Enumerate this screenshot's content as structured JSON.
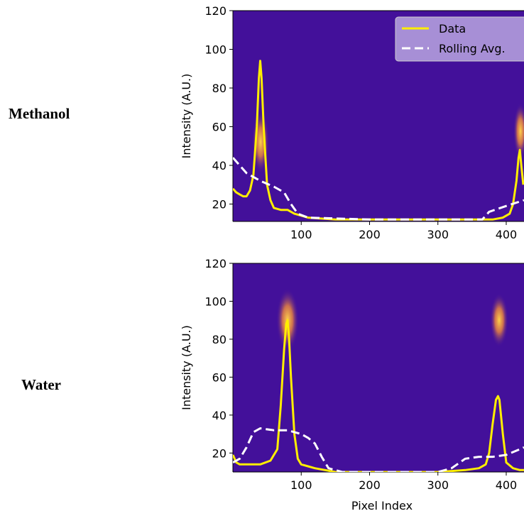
{
  "chart_data": [
    {
      "type": "line",
      "title": "Methanol",
      "ylabel": "Intensity (A.U.)",
      "xlim": [
        0,
        426
      ],
      "xticks": [
        100,
        200,
        300,
        400
      ],
      "ylim": [
        11,
        120
      ],
      "yticks": [
        20,
        40,
        60,
        80,
        100,
        120
      ],
      "legend": "upper right",
      "series": [
        {
          "name": "Data",
          "color": "#ffee00",
          "style": "solid",
          "x": [
            0,
            5,
            10,
            15,
            20,
            25,
            30,
            35,
            38,
            40,
            42,
            45,
            50,
            55,
            60,
            70,
            80,
            90,
            100,
            110,
            150,
            200,
            250,
            300,
            350,
            380,
            395,
            405,
            410,
            415,
            418,
            420,
            422,
            425
          ],
          "values": [
            28,
            26,
            25,
            24,
            24,
            27,
            35,
            60,
            85,
            94,
            85,
            60,
            30,
            22,
            18,
            17,
            17,
            15,
            14,
            13,
            12,
            12,
            12,
            12,
            12,
            12,
            13,
            15,
            20,
            32,
            44,
            48,
            40,
            30
          ]
        },
        {
          "name": "Rolling Avg.",
          "color": "#ffffff",
          "style": "dashed",
          "x": [
            0,
            20,
            40,
            60,
            75,
            85,
            95,
            110,
            200,
            300,
            365,
            375,
            400,
            426
          ],
          "values": [
            44,
            36,
            32,
            29,
            26,
            20,
            15,
            13,
            12,
            12,
            12,
            16,
            19,
            22
          ]
        }
      ]
    },
    {
      "type": "line",
      "title": "Water",
      "ylabel": "Intensity (A.U.)",
      "xlabel": "Pixel Index",
      "xlim": [
        0,
        426
      ],
      "xticks": [
        100,
        200,
        300,
        400
      ],
      "ylim": [
        10,
        120
      ],
      "yticks": [
        20,
        40,
        60,
        80,
        100,
        120
      ],
      "series": [
        {
          "color": "#ffee00",
          "style": "solid",
          "x": [
            0,
            5,
            10,
            20,
            40,
            55,
            65,
            70,
            75,
            78,
            80,
            82,
            85,
            90,
            95,
            100,
            110,
            120,
            150,
            200,
            300,
            340,
            360,
            370,
            375,
            380,
            385,
            388,
            390,
            395,
            400,
            410,
            420,
            426
          ],
          "values": [
            19,
            15,
            14,
            14,
            14,
            16,
            22,
            45,
            75,
            88,
            90,
            82,
            60,
            30,
            17,
            14,
            13,
            12,
            10,
            10,
            10,
            11,
            12,
            14,
            20,
            35,
            48,
            50,
            48,
            30,
            15,
            12,
            11,
            11
          ]
        },
        {
          "color": "#ffffff",
          "style": "dashed",
          "x": [
            0,
            10,
            20,
            30,
            40,
            60,
            80,
            100,
            110,
            120,
            130,
            140,
            160,
            200,
            300,
            320,
            340,
            360,
            380,
            400,
            420,
            426
          ],
          "values": [
            15,
            17,
            23,
            31,
            33,
            32,
            32,
            30,
            28,
            25,
            18,
            12,
            10,
            10,
            10,
            12,
            17,
            18,
            18,
            19,
            22,
            23
          ]
        }
      ]
    }
  ]
}
